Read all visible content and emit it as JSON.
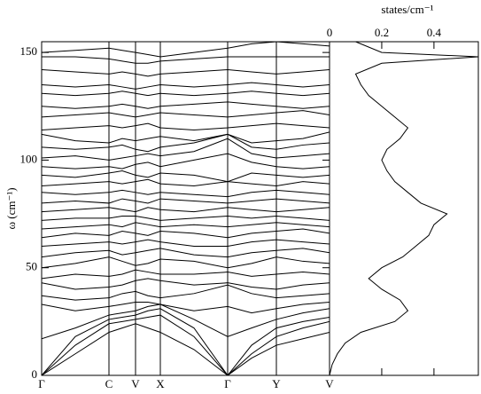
{
  "chart_data": [
    {
      "type": "line",
      "y_label": "ω (cm⁻¹)",
      "color": "#000000",
      "x": [
        0,
        0.38,
        0.76,
        0.91,
        1.06,
        1.2,
        1.34,
        1.72,
        2.1,
        2.37,
        2.65,
        2.95,
        3.25
      ],
      "xlim": [
        0,
        3.25
      ],
      "xticks": [
        {
          "value": 0,
          "label": "Γ"
        },
        {
          "value": 0.76,
          "label": "C"
        },
        {
          "value": 1.06,
          "label": "V"
        },
        {
          "value": 1.34,
          "label": "X"
        },
        {
          "value": 2.1,
          "label": "Γ"
        },
        {
          "value": 2.65,
          "label": "Y"
        },
        {
          "value": 3.25,
          "label": "V"
        }
      ],
      "ylim": [
        0,
        155
      ],
      "yticks": [
        0,
        50,
        100,
        150
      ],
      "grid": true,
      "series": [
        {
          "values": [
            0,
            10,
            20,
            22,
            24,
            22,
            20,
            12,
            0,
            8,
            14,
            17,
            20
          ]
        },
        {
          "values": [
            0,
            14,
            24,
            25,
            26,
            27,
            28,
            18,
            0,
            10,
            18,
            22,
            25
          ]
        },
        {
          "values": [
            0,
            18,
            26,
            27,
            28,
            30,
            31,
            22,
            0,
            14,
            22,
            25,
            27
          ]
        },
        {
          "values": [
            17,
            22,
            28,
            29,
            30,
            32,
            33,
            26,
            18,
            22,
            26,
            29,
            31
          ]
        },
        {
          "values": [
            33,
            30,
            32,
            33,
            34,
            34,
            33,
            30,
            32,
            29,
            31,
            33,
            34
          ]
        },
        {
          "values": [
            37,
            35,
            36,
            38,
            39,
            37,
            36,
            38,
            42,
            38,
            36,
            37,
            38
          ]
        },
        {
          "values": [
            43,
            40,
            41,
            42,
            44,
            45,
            44,
            42,
            43,
            41,
            40,
            42,
            43
          ]
        },
        {
          "values": [
            45,
            47,
            46,
            47,
            49,
            48,
            47,
            47,
            48,
            46,
            47,
            48,
            47
          ]
        },
        {
          "values": [
            50,
            52,
            55,
            53,
            51,
            52,
            54,
            53,
            50,
            52,
            55,
            53,
            52
          ]
        },
        {
          "values": [
            55,
            57,
            58,
            56,
            57,
            58,
            59,
            56,
            55,
            57,
            58,
            59,
            57
          ]
        },
        {
          "values": [
            60,
            61,
            62,
            61,
            62,
            63,
            62,
            60,
            60,
            62,
            63,
            62,
            61
          ]
        },
        {
          "values": [
            64,
            66,
            65,
            67,
            66,
            65,
            67,
            66,
            64,
            66,
            67,
            68,
            66
          ]
        },
        {
          "values": [
            68,
            69,
            70,
            69,
            71,
            70,
            69,
            70,
            69,
            70,
            71,
            70,
            69
          ]
        },
        {
          "values": [
            72,
            73,
            73,
            74,
            74,
            73,
            72,
            73,
            74,
            73,
            74,
            73,
            72
          ]
        },
        {
          "values": [
            76,
            77,
            78,
            77,
            76,
            78,
            77,
            76,
            78,
            77,
            76,
            77,
            78
          ]
        },
        {
          "values": [
            80,
            81,
            80,
            82,
            81,
            80,
            82,
            81,
            80,
            81,
            82,
            81,
            80
          ]
        },
        {
          "values": [
            85,
            84,
            85,
            86,
            85,
            84,
            85,
            84,
            83,
            85,
            86,
            85,
            84
          ]
        },
        {
          "values": [
            88,
            89,
            90,
            89,
            90,
            91,
            89,
            88,
            90,
            89,
            88,
            90,
            89
          ]
        },
        {
          "values": [
            93,
            92,
            94,
            95,
            93,
            92,
            94,
            93,
            90,
            94,
            93,
            92,
            93
          ]
        },
        {
          "values": [
            97,
            96,
            97,
            96,
            98,
            99,
            97,
            100,
            103,
            99,
            97,
            96,
            97
          ]
        },
        {
          "values": [
            101,
            102,
            100,
            101,
            102,
            103,
            102,
            104,
            110,
            103,
            101,
            102,
            103
          ]
        },
        {
          "values": [
            106,
            105,
            106,
            107,
            105,
            104,
            106,
            108,
            112,
            106,
            105,
            107,
            108
          ]
        },
        {
          "values": [
            112,
            109,
            108,
            110,
            109,
            110,
            111,
            109,
            112,
            108,
            109,
            110,
            113
          ]
        },
        {
          "values": [
            114,
            115,
            116,
            115,
            116,
            117,
            115,
            114,
            115,
            116,
            117,
            116,
            115
          ]
        },
        {
          "values": [
            120,
            121,
            122,
            121,
            120,
            121,
            122,
            121,
            120,
            121,
            122,
            123,
            121
          ]
        },
        {
          "values": [
            125,
            124,
            125,
            126,
            125,
            124,
            125,
            126,
            127,
            126,
            125,
            124,
            125
          ]
        },
        {
          "values": [
            131,
            130,
            131,
            132,
            131,
            130,
            131,
            130,
            131,
            132,
            131,
            130,
            131
          ]
        },
        {
          "values": [
            135,
            134,
            135,
            134,
            133,
            134,
            135,
            134,
            135,
            136,
            135,
            134,
            135
          ]
        },
        {
          "values": [
            142,
            141,
            140,
            141,
            140,
            139,
            140,
            141,
            142,
            141,
            140,
            141,
            142
          ]
        },
        {
          "values": [
            148,
            148,
            147,
            146,
            145,
            145,
            146,
            147,
            148,
            148,
            148,
            148,
            148
          ]
        },
        {
          "values": [
            150,
            151,
            152,
            151,
            150,
            149,
            148,
            150,
            152,
            154,
            155,
            154,
            153
          ]
        }
      ]
    },
    {
      "type": "dos",
      "x_label": "states/cm⁻¹",
      "color": "#000000",
      "frequencies": [
        0,
        5,
        10,
        15,
        20,
        25,
        30,
        35,
        40,
        45,
        50,
        55,
        60,
        65,
        70,
        75,
        80,
        85,
        90,
        95,
        100,
        105,
        110,
        115,
        120,
        125,
        130,
        135,
        140,
        145,
        148,
        150,
        155
      ],
      "values": [
        0,
        0.01,
        0.03,
        0.06,
        0.12,
        0.25,
        0.3,
        0.27,
        0.2,
        0.15,
        0.2,
        0.28,
        0.33,
        0.38,
        0.4,
        0.45,
        0.35,
        0.3,
        0.25,
        0.22,
        0.2,
        0.22,
        0.27,
        0.3,
        0.25,
        0.2,
        0.15,
        0.12,
        0.1,
        0.2,
        0.57,
        0.2,
        0.1
      ],
      "xlim": [
        0,
        0.57
      ],
      "xticks": [
        0,
        0.2,
        0.4
      ],
      "ylim": [
        0,
        155
      ]
    }
  ]
}
